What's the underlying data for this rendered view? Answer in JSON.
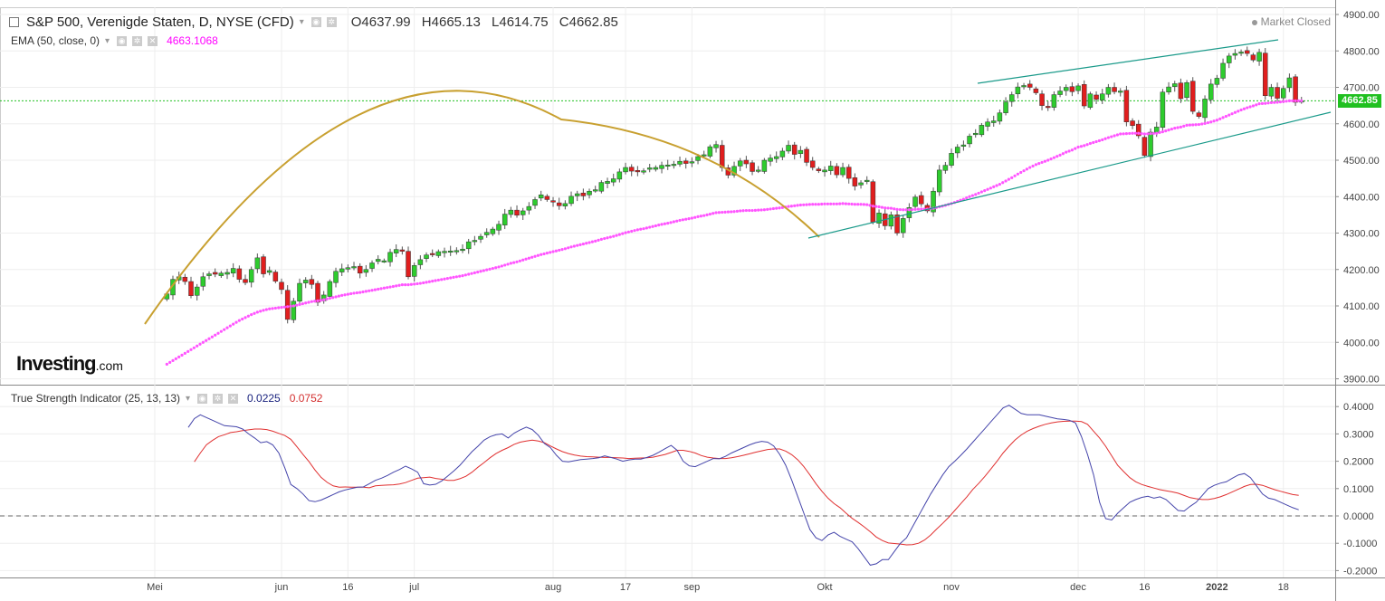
{
  "header": {
    "title": "S&P 500, Verenigde Staten, D, NYSE (CFD)",
    "open": "O4637.99",
    "high": "H4665.13",
    "low": "L4614.75",
    "close": "C4662.85",
    "market_status": "Market Closed",
    "last_price_tag": "4662.85"
  },
  "ema_legend": {
    "label": "EMA (50, close, 0)",
    "value": "4663.1068"
  },
  "tsi_legend": {
    "label": "True Strength Indicator (25, 13, 13)",
    "value1": "0.0225",
    "value2": "0.0752"
  },
  "watermark": {
    "brand": "Investing",
    "suffix": ".com"
  },
  "colors": {
    "up": "#2ecc2e",
    "down": "#e01e1e",
    "ema": "#ff55ff",
    "arc": "#c8a030",
    "channel": "#1a9a8a",
    "tsi": "#4444aa",
    "signal": "#e03030",
    "last_price": "#20c020"
  },
  "chart_data": [
    {
      "type": "candlestick",
      "title": "S&P 500, Verenigde Staten, D, NYSE (CFD)",
      "y_ticks": [
        "4900.00",
        "4800.00",
        "4700.00",
        "4600.00",
        "4500.00",
        "4400.00",
        "4300.00",
        "4200.00",
        "4100.00",
        "4000.00",
        "3900.00"
      ],
      "ylim": [
        3895,
        4915
      ],
      "x_ticks": [
        {
          "i": 24,
          "label": "Mei"
        },
        {
          "i": 45,
          "label": "jun"
        },
        {
          "i": 56,
          "label": "16"
        },
        {
          "i": 67,
          "label": "jul"
        },
        {
          "i": 90,
          "label": "aug"
        },
        {
          "i": 102,
          "label": "17"
        },
        {
          "i": 113,
          "label": "sep"
        },
        {
          "i": 135,
          "label": "Okt"
        },
        {
          "i": 156,
          "label": "nov"
        },
        {
          "i": 177,
          "label": "dec"
        },
        {
          "i": 188,
          "label": "16"
        },
        {
          "i": 200,
          "label": "2022"
        },
        {
          "i": 211,
          "label": "18"
        }
      ],
      "close": [
        4133,
        4173,
        4180,
        4167,
        4128,
        4152,
        4180,
        4188,
        4187,
        4190,
        4192,
        4203,
        4173,
        4164,
        4200,
        4232,
        4188,
        4197,
        4168,
        4145,
        4063,
        4113,
        4162,
        4171,
        4159,
        4110,
        4130,
        4167,
        4195,
        4202,
        4205,
        4208,
        4190,
        4200,
        4218,
        4228,
        4224,
        4247,
        4255,
        4250,
        4180,
        4211,
        4227,
        4240,
        4242,
        4249,
        4250,
        4251,
        4252,
        4256,
        4276,
        4280,
        4291,
        4302,
        4311,
        4324,
        4352,
        4363,
        4349,
        4361,
        4373,
        4392,
        4405,
        4392,
        4385,
        4375,
        4381,
        4401,
        4408,
        4402,
        4415,
        4419,
        4439,
        4442,
        4449,
        4468,
        4480,
        4470,
        4468,
        4471,
        4479,
        4480,
        4486,
        4487,
        4489,
        4497,
        4491,
        4496,
        4510,
        4515,
        4537,
        4543,
        4480,
        4459,
        4483,
        4498,
        4490,
        4469,
        4473,
        4500,
        4506,
        4510,
        4525,
        4541,
        4516,
        4527,
        4494,
        4480,
        4471,
        4473,
        4484,
        4460,
        4480,
        4450,
        4429,
        4438,
        4445,
        4330,
        4355,
        4320,
        4350,
        4300,
        4340,
        4370,
        4399,
        4380,
        4361,
        4415,
        4473,
        4486,
        4519,
        4536,
        4542,
        4566,
        4574,
        4596,
        4605,
        4608,
        4630,
        4660,
        4680,
        4701,
        4705,
        4700,
        4685,
        4650,
        4646,
        4680,
        4690,
        4700,
        4688,
        4704,
        4649,
        4682,
        4667,
        4682,
        4700,
        4688,
        4690,
        4605,
        4595,
        4567,
        4513,
        4577,
        4591,
        4687,
        4701,
        4710,
        4669,
        4713,
        4634,
        4620,
        4668,
        4709,
        4725,
        4766,
        4786,
        4793,
        4797,
        4793,
        4775,
        4796,
        4677,
        4700,
        4670,
        4697,
        4726,
        4659,
        4663
      ],
      "candles_last_index": 214,
      "ema50": [
        3940,
        3950,
        3960,
        3970,
        3980,
        3990,
        4000,
        4010,
        4020,
        4030,
        4040,
        4050,
        4060,
        4068,
        4076,
        4083,
        4088,
        4092,
        4094,
        4096,
        4098,
        4100,
        4104,
        4108,
        4112,
        4114,
        4117,
        4121,
        4125,
        4129,
        4132,
        4135,
        4137,
        4140,
        4143,
        4146,
        4149,
        4152,
        4155,
        4158,
        4158,
        4160,
        4162,
        4165,
        4168,
        4171,
        4174,
        4177,
        4180,
        4183,
        4187,
        4191,
        4195,
        4199,
        4203,
        4207,
        4212,
        4217,
        4221,
        4226,
        4231,
        4236,
        4241,
        4245,
        4249,
        4253,
        4257,
        4262,
        4266,
        4270,
        4274,
        4278,
        4283,
        4287,
        4291,
        4296,
        4301,
        4305,
        4309,
        4312,
        4316,
        4320,
        4324,
        4327,
        4331,
        4335,
        4338,
        4341,
        4345,
        4348,
        4352,
        4356,
        4357,
        4358,
        4359,
        4361,
        4362,
        4362,
        4363,
        4364,
        4366,
        4368,
        4370,
        4373,
        4375,
        4377,
        4378,
        4379,
        4379,
        4380,
        4380,
        4380,
        4381,
        4380,
        4379,
        4379,
        4378,
        4374,
        4372,
        4369,
        4368,
        4365,
        4364,
        4364,
        4365,
        4366,
        4366,
        4368,
        4372,
        4376,
        4381,
        4387,
        4393,
        4400,
        4406,
        4413,
        4420,
        4427,
        4434,
        4443,
        4452,
        4462,
        4471,
        4480,
        4488,
        4494,
        4500,
        4507,
        4514,
        4522,
        4528,
        4536,
        4540,
        4546,
        4551,
        4556,
        4562,
        4567,
        4572,
        4573,
        4574,
        4574,
        4572,
        4573,
        4574,
        4578,
        4583,
        4588,
        4591,
        4596,
        4597,
        4598,
        4601,
        4605,
        4610,
        4617,
        4624,
        4631,
        4638,
        4644,
        4649,
        4655,
        4656,
        4658,
        4659,
        4661,
        4663,
        4663,
        4663
      ]
    },
    {
      "type": "line",
      "title": "True Strength Indicator (25, 13, 13)",
      "y_ticks": [
        "0.4000",
        "0.3000",
        "0.2000",
        "0.1000",
        "0.0000",
        "-0.1000",
        "-0.2000"
      ],
      "ylim": [
        -0.21,
        0.42
      ],
      "series": [
        {
          "name": "0.0225",
          "values": [
            0.324,
            0.356,
            0.37,
            0.36,
            0.35,
            0.34,
            0.33,
            0.328,
            0.326,
            0.318,
            0.3,
            0.285,
            0.268,
            0.272,
            0.26,
            0.23,
            0.175,
            0.115,
            0.1,
            0.08,
            0.056,
            0.052,
            0.058,
            0.068,
            0.078,
            0.088,
            0.095,
            0.1,
            0.105,
            0.106,
            0.118,
            0.13,
            0.138,
            0.148,
            0.16,
            0.17,
            0.182,
            0.172,
            0.16,
            0.118,
            0.113,
            0.116,
            0.128,
            0.146,
            0.165,
            0.185,
            0.21,
            0.235,
            0.255,
            0.277,
            0.29,
            0.297,
            0.3,
            0.285,
            0.303,
            0.315,
            0.325,
            0.316,
            0.295,
            0.265,
            0.25,
            0.222,
            0.2,
            0.198,
            0.202,
            0.206,
            0.208,
            0.21,
            0.213,
            0.22,
            0.214,
            0.208,
            0.2,
            0.205,
            0.208,
            0.208,
            0.214,
            0.222,
            0.233,
            0.246,
            0.258,
            0.24,
            0.2,
            0.183,
            0.18,
            0.19,
            0.2,
            0.21,
            0.209,
            0.218,
            0.23,
            0.24,
            0.25,
            0.26,
            0.268,
            0.273,
            0.27,
            0.256,
            0.225,
            0.185,
            0.13,
            0.07,
            0.01,
            -0.05,
            -0.08,
            -0.09,
            -0.07,
            -0.06,
            -0.075,
            -0.085,
            -0.095,
            -0.12,
            -0.15,
            -0.18,
            -0.175,
            -0.16,
            -0.16,
            -0.13,
            -0.1,
            -0.08,
            -0.04,
            0.0,
            0.04,
            0.08,
            0.115,
            0.15,
            0.18,
            0.2,
            0.222,
            0.245,
            0.27,
            0.295,
            0.32,
            0.345,
            0.37,
            0.395,
            0.405,
            0.39,
            0.375,
            0.37,
            0.37,
            0.37,
            0.365,
            0.36,
            0.355,
            0.353,
            0.35,
            0.34,
            0.29,
            0.225,
            0.15,
            0.05,
            -0.01,
            -0.015,
            0.01,
            0.03,
            0.05,
            0.06,
            0.068,
            0.072,
            0.065,
            0.07,
            0.06,
            0.04,
            0.02,
            0.018,
            0.035,
            0.05,
            0.075,
            0.1,
            0.112,
            0.12,
            0.125,
            0.138,
            0.15,
            0.155,
            0.14,
            0.11,
            0.08,
            0.065,
            0.06,
            0.05,
            0.04,
            0.03,
            0.0225
          ]
        },
        {
          "name": "0.0752",
          "values": [
            0.198,
            0.23,
            0.26,
            0.276,
            0.29,
            0.297,
            0.305,
            0.308,
            0.312,
            0.315,
            0.318,
            0.318,
            0.316,
            0.31,
            0.302,
            0.294,
            0.28,
            0.253,
            0.225,
            0.199,
            0.168,
            0.141,
            0.123,
            0.11,
            0.105,
            0.106,
            0.105,
            0.105,
            0.105,
            0.103,
            0.11,
            0.112,
            0.113,
            0.114,
            0.117,
            0.122,
            0.13,
            0.138,
            0.14,
            0.142,
            0.137,
            0.134,
            0.13,
            0.13,
            0.136,
            0.145,
            0.16,
            0.178,
            0.195,
            0.213,
            0.228,
            0.24,
            0.25,
            0.262,
            0.27,
            0.274,
            0.277,
            0.274,
            0.268,
            0.256,
            0.245,
            0.235,
            0.228,
            0.223,
            0.219,
            0.217,
            0.216,
            0.215,
            0.214,
            0.214,
            0.213,
            0.212,
            0.21,
            0.211,
            0.212,
            0.213,
            0.215,
            0.22,
            0.225,
            0.232,
            0.24,
            0.24,
            0.236,
            0.23,
            0.221,
            0.215,
            0.212,
            0.21,
            0.21,
            0.213,
            0.217,
            0.222,
            0.227,
            0.233,
            0.238,
            0.243,
            0.245,
            0.245,
            0.237,
            0.224,
            0.205,
            0.18,
            0.15,
            0.118,
            0.09,
            0.065,
            0.045,
            0.03,
            0.01,
            -0.009,
            -0.024,
            -0.04,
            -0.058,
            -0.077,
            -0.09,
            -0.099,
            -0.101,
            -0.103,
            -0.106,
            -0.105,
            -0.1,
            -0.088,
            -0.07,
            -0.048,
            -0.027,
            -0.005,
            0.02,
            0.045,
            0.07,
            0.097,
            0.12,
            0.145,
            0.172,
            0.2,
            0.23,
            0.255,
            0.278,
            0.296,
            0.31,
            0.32,
            0.328,
            0.335,
            0.34,
            0.344,
            0.346,
            0.347,
            0.347,
            0.345,
            0.335,
            0.31,
            0.285,
            0.255,
            0.22,
            0.185,
            0.162,
            0.14,
            0.125,
            0.115,
            0.108,
            0.102,
            0.096,
            0.092,
            0.088,
            0.083,
            0.075,
            0.067,
            0.063,
            0.06,
            0.06,
            0.064,
            0.07,
            0.078,
            0.088,
            0.098,
            0.108,
            0.115,
            0.116,
            0.112,
            0.104,
            0.096,
            0.09,
            0.084,
            0.078,
            0.0752
          ]
        }
      ],
      "x_ticks": [
        "Mei",
        "jun",
        "16",
        "jul",
        "aug",
        "17",
        "sep",
        "Okt",
        "nov",
        "dec",
        "16",
        "2022",
        "18"
      ]
    }
  ],
  "y_axis_labels_main": [
    "4900.00",
    "4800.00",
    "4700.00",
    "4600.00",
    "4500.00",
    "4400.00",
    "4300.00",
    "4200.00",
    "4100.00",
    "4000.00",
    "3900.00"
  ],
  "y_axis_labels_tsi": [
    "0.4000",
    "0.3000",
    "0.2000",
    "0.1000",
    "0.0000",
    "-0.1000",
    "-0.2000"
  ]
}
